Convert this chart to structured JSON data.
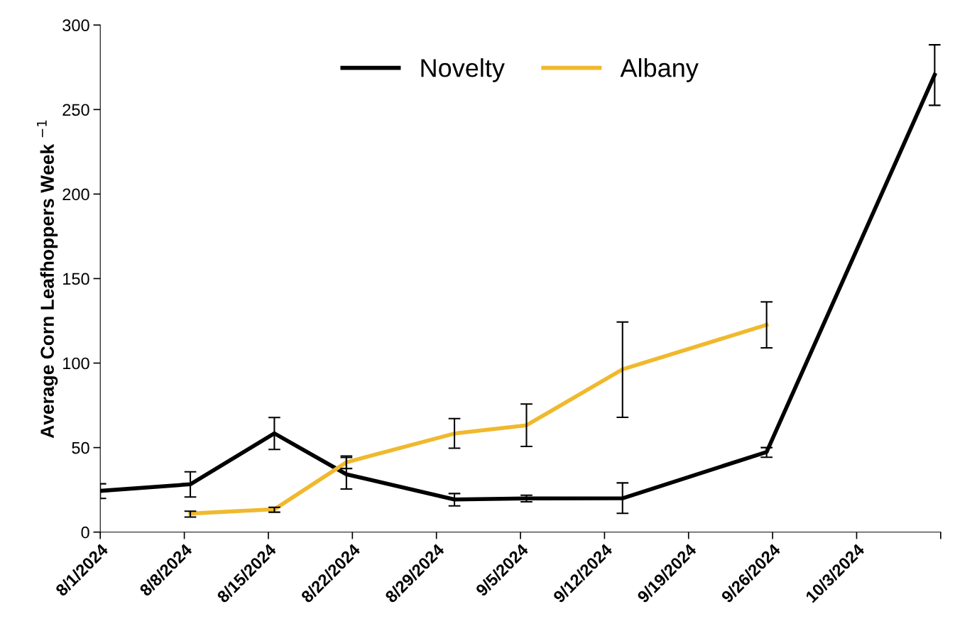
{
  "chart_data": {
    "type": "line",
    "ylabel": "Average Corn Leafhoppers Week $^{−1}$",
    "xlim": [
      "2024-08-01",
      "2024-10-10"
    ],
    "xticks": [
      {
        "value": "2024-08-01",
        "label": "8/1/2024"
      },
      {
        "value": "2024-08-08",
        "label": "8/8/2024"
      },
      {
        "value": "2024-08-15",
        "label": "8/15/2024"
      },
      {
        "value": "2024-08-22",
        "label": "8/22/2024"
      },
      {
        "value": "2024-08-29",
        "label": "8/29/2024"
      },
      {
        "value": "2024-09-05",
        "label": "9/5/2024"
      },
      {
        "value": "2024-09-12",
        "label": "9/12/2024"
      },
      {
        "value": "2024-09-19",
        "label": "9/19/2024"
      },
      {
        "value": "2024-09-26",
        "label": "9/26/2024"
      },
      {
        "value": "2024-10-03",
        "label": "10/3/2024"
      },
      {
        "value": "2024-10-10",
        "label": null
      }
    ],
    "ylim": [
      0,
      300
    ],
    "yticks": [
      0,
      50,
      100,
      150,
      200,
      250,
      300
    ],
    "grid": false,
    "legend": "top",
    "marker": "none",
    "line_style": "solid",
    "series": [
      {
        "name": "Novelty",
        "color": "#000000",
        "x": [
          "2024-08-01",
          "2024-08-08T12:00",
          "2024-08-15T12:00",
          "2024-08-21T12:00",
          "2024-08-30T12:00",
          "2024-09-05T12:00",
          "2024-09-13T12:00",
          "2024-09-25T12:00",
          "2024-10-09T12:00"
        ],
        "values": [
          24.4,
          28.3,
          58.4,
          34.2,
          19.3,
          19.9,
          20.0,
          47.4,
          270.5
        ],
        "errors": [
          [
            19.9,
            28.6
          ],
          [
            20.8,
            35.7
          ],
          [
            48.9,
            67.8
          ],
          [
            25.5,
            44.2
          ],
          [
            15.5,
            22.8
          ],
          [
            17.9,
            21.8
          ],
          [
            11.1,
            29.1
          ],
          [
            44.3,
            50.0
          ],
          [
            252.5,
            288.3
          ]
        ]
      },
      {
        "name": "Albany",
        "color": "#f0b92d",
        "x": [
          "2024-08-08T12:00",
          "2024-08-15T12:00",
          "2024-08-21T12:00",
          "2024-08-30T12:00",
          "2024-09-05T12:00",
          "2024-09-13T12:00",
          "2024-09-25T12:00"
        ],
        "values": [
          11.0,
          13.5,
          41.3,
          58.3,
          63.2,
          96.3,
          122.6
        ],
        "errors": [
          [
            8.9,
            12.4
          ],
          [
            11.8,
            14.7
          ],
          [
            37.6,
            45.0
          ],
          [
            49.6,
            67.2
          ],
          [
            50.7,
            75.8
          ],
          [
            67.9,
            124.3
          ],
          [
            109.0,
            136.2
          ]
        ]
      }
    ]
  }
}
